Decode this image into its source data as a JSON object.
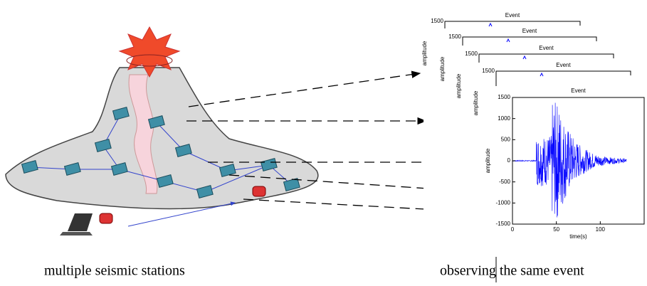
{
  "captions": [
    "multiple seismic stations",
    "observing the same event"
  ],
  "back_panels": [
    {
      "title": "Event",
      "ylabel": "amplitude",
      "top_tick": 1500
    },
    {
      "title": "Event",
      "ylabel": "amplitude",
      "top_tick": 1500
    },
    {
      "title": "Event",
      "ylabel": "amplitude",
      "top_tick": 1500
    },
    {
      "title": "Event",
      "ylabel": "amplitude",
      "top_tick": 1500
    }
  ],
  "plot": {
    "title": "Event",
    "ylabel": "amplitude",
    "xlabel": "time(s)",
    "xlim": [
      0,
      150
    ],
    "ylim": [
      -1500,
      1500
    ],
    "xticks": [
      0,
      50,
      100
    ],
    "yticks": [
      1500,
      1000,
      500,
      0,
      -500,
      -1000,
      -1500
    ]
  }
}
